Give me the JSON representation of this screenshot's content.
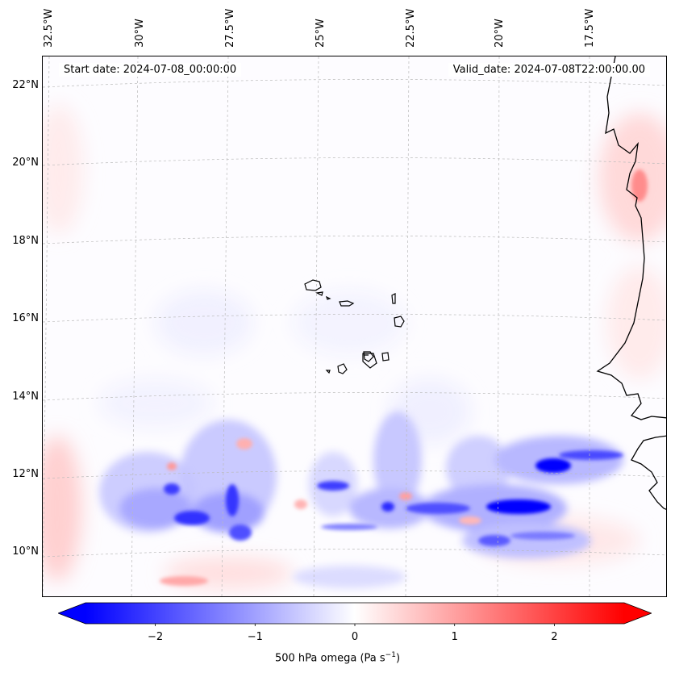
{
  "map": {
    "start_date": "Start date: 2024-07-08_00:00:00",
    "valid_date": "Valid_date: 2024-07-08T22:00:00.00",
    "lon_labels": [
      "32.5°W",
      "30°W",
      "27.5°W",
      "25°W",
      "22.5°W",
      "20°W",
      "17.5°W"
    ],
    "lat_labels": [
      "22°N",
      "20°N",
      "18°N",
      "16°N",
      "14°N",
      "12°N",
      "10°N"
    ],
    "extent": {
      "lon_min": -33.0,
      "lon_max": -15.9,
      "lat_min": 8.9,
      "lat_max": 22.8
    },
    "gridlines": true,
    "features": [
      "coastline-africa",
      "cape-verde-islands"
    ]
  },
  "colorbar": {
    "label": "500 hPa omega (Pa s",
    "label_exponent": "−1",
    "label_close": ")",
    "ticks": [
      "−2",
      "−1",
      "0",
      "1",
      "2"
    ],
    "tick_values": [
      -2,
      -1,
      0,
      1,
      2
    ],
    "range": [
      -2.7,
      2.7
    ],
    "colormap": "bwr",
    "low_color": "#0000ff",
    "mid_color": "#ffffff",
    "high_color": "#ff0000",
    "extend": "both"
  }
}
